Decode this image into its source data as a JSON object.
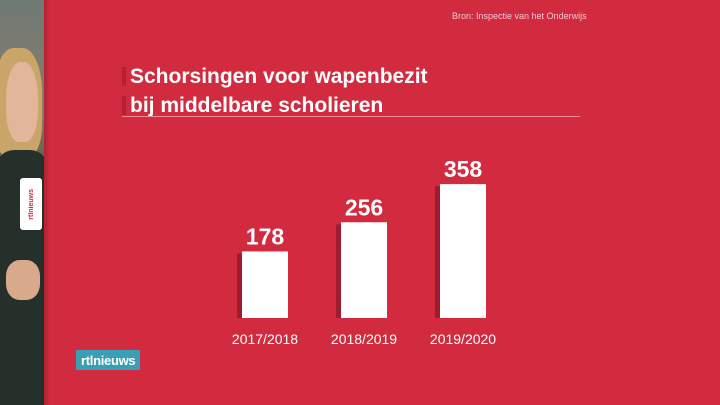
{
  "source_note": "Bron: Inspectie van het Onderwijs",
  "title_lines": [
    "Schorsingen voor wapenbezit",
    "bij middelbare scholieren"
  ],
  "broadcaster_logo": "rtlnieuws",
  "mic_flag_text": "rtlnieuws",
  "colors": {
    "background": "#d22b3f",
    "bar": "#ffffff",
    "bar_shadow": "#9e1c2d",
    "logo_bg": "#3a9fb4"
  },
  "chart_data": {
    "type": "bar",
    "categories": [
      "2017/2018",
      "2018/2019",
      "2019/2020"
    ],
    "values": [
      178,
      256,
      358
    ],
    "ylim": [
      0,
      400
    ],
    "grid": false,
    "legend": "none"
  }
}
